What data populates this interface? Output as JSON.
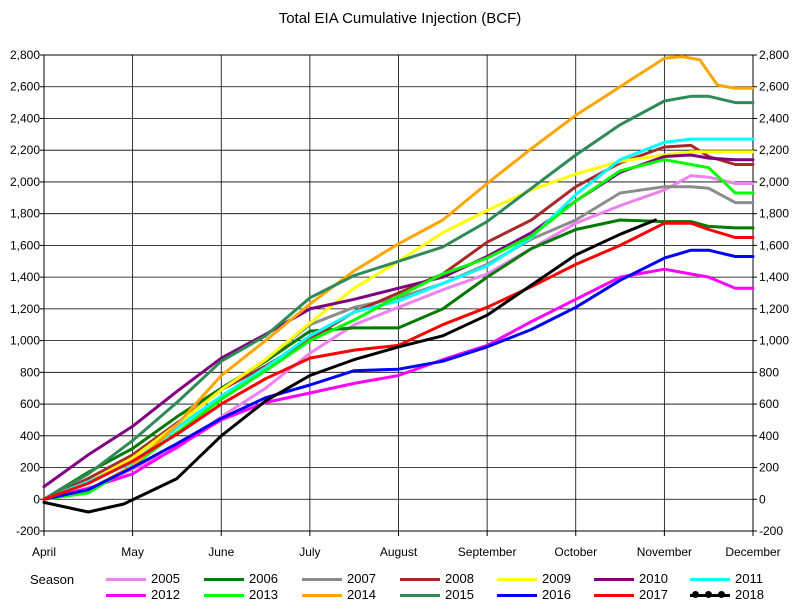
{
  "title": "Total EIA Cumulative Injection (BCF)",
  "legend_title": "Season",
  "chart_data": {
    "type": "line",
    "title": "Total EIA Cumulative Injection (BCF)",
    "xlabel": "",
    "ylabel": "",
    "ylim": [
      -200,
      2800
    ],
    "y_ticks": [
      "-200",
      "0",
      "200",
      "400",
      "600",
      "800",
      "1,000",
      "1,200",
      "1,400",
      "1,600",
      "1,800",
      "2,000",
      "2,200",
      "2,400",
      "2,600",
      "2,800"
    ],
    "x_ticks": [
      "April",
      "May",
      "June",
      "July",
      "August",
      "September",
      "October",
      "November",
      "December"
    ],
    "grid": true,
    "legend_position": "bottom",
    "x_unit": "month index (0 = April, 8 = December)",
    "series": [
      {
        "name": "2005",
        "color": "#ee82ee",
        "x": [
          0,
          0.5,
          1,
          1.5,
          2,
          2.5,
          3,
          3.5,
          4,
          4.5,
          5,
          5.5,
          6,
          6.5,
          7,
          7.3,
          7.5,
          7.8,
          8
        ],
        "y": [
          0,
          60,
          190,
          320,
          520,
          700,
          920,
          1100,
          1210,
          1320,
          1420,
          1580,
          1740,
          1850,
          1950,
          2040,
          2030,
          1990,
          1990
        ]
      },
      {
        "name": "2006",
        "color": "#007a00",
        "x": [
          0,
          0.5,
          1,
          1.5,
          2,
          2.5,
          3,
          3.5,
          4,
          4.5,
          5,
          5.5,
          6,
          6.5,
          7,
          7.3,
          7.5,
          7.8,
          8
        ],
        "y": [
          0,
          170,
          320,
          520,
          700,
          870,
          1060,
          1080,
          1080,
          1200,
          1400,
          1580,
          1700,
          1760,
          1750,
          1750,
          1720,
          1710,
          1710
        ]
      },
      {
        "name": "2007",
        "color": "#8c8c8c",
        "x": [
          0,
          0.5,
          1,
          1.5,
          2,
          2.5,
          3,
          3.5,
          4,
          4.5,
          5,
          5.5,
          6,
          6.5,
          7,
          7.3,
          7.5,
          7.8,
          8
        ],
        "y": [
          0,
          130,
          270,
          470,
          690,
          880,
          1100,
          1210,
          1270,
          1360,
          1480,
          1640,
          1760,
          1930,
          1970,
          1970,
          1960,
          1870,
          1870
        ]
      },
      {
        "name": "2008",
        "color": "#a52a2a",
        "x": [
          0,
          0.5,
          1,
          1.5,
          2,
          2.5,
          3,
          3.5,
          4,
          4.5,
          5,
          5.5,
          6,
          6.5,
          7,
          7.3,
          7.5,
          7.8,
          8
        ],
        "y": [
          0,
          130,
          280,
          480,
          690,
          840,
          1010,
          1180,
          1300,
          1420,
          1620,
          1760,
          1970,
          2120,
          2220,
          2230,
          2160,
          2110,
          2110
        ]
      },
      {
        "name": "2009",
        "color": "#ffff00",
        "x": [
          0,
          0.5,
          1,
          1.5,
          2,
          2.5,
          3,
          3.5,
          4,
          4.5,
          5,
          5.5,
          6,
          6.5,
          7,
          7.3,
          7.5,
          7.8,
          8
        ],
        "y": [
          0,
          110,
          260,
          470,
          690,
          880,
          1110,
          1330,
          1500,
          1680,
          1820,
          1950,
          2050,
          2130,
          2170,
          2190,
          2190,
          2190,
          2190
        ]
      },
      {
        "name": "2010",
        "color": "#800080",
        "x": [
          0,
          0.5,
          1,
          1.5,
          2,
          2.5,
          3,
          3.5,
          4,
          4.5,
          5,
          5.5,
          6,
          6.5,
          7,
          7.3,
          7.5,
          7.8,
          8
        ],
        "y": [
          80,
          280,
          460,
          680,
          890,
          1040,
          1200,
          1260,
          1330,
          1400,
          1530,
          1680,
          1880,
          2060,
          2160,
          2170,
          2150,
          2140,
          2140
        ]
      },
      {
        "name": "2011",
        "color": "#00ffff",
        "x": [
          0,
          0.5,
          1,
          1.5,
          2,
          2.5,
          3,
          3.5,
          4,
          4.5,
          5,
          5.5,
          6,
          6.5,
          7,
          7.3,
          7.5,
          7.8,
          8
        ],
        "y": [
          0,
          110,
          230,
          450,
          650,
          830,
          1030,
          1180,
          1250,
          1360,
          1470,
          1650,
          1920,
          2140,
          2250,
          2270,
          2270,
          2270,
          2270
        ]
      },
      {
        "name": "2012",
        "color": "#ff00ff",
        "x": [
          0,
          0.5,
          1,
          1.5,
          2,
          2.5,
          3,
          3.5,
          4,
          4.5,
          5,
          5.5,
          6,
          6.5,
          7,
          7.3,
          7.5,
          7.8,
          8
        ],
        "y": [
          0,
          70,
          160,
          330,
          500,
          610,
          670,
          730,
          780,
          880,
          970,
          1120,
          1260,
          1400,
          1450,
          1420,
          1400,
          1330,
          1330
        ]
      },
      {
        "name": "2013",
        "color": "#00ff00",
        "x": [
          0,
          0.5,
          1,
          1.5,
          2,
          2.5,
          3,
          3.5,
          4,
          4.5,
          5,
          5.5,
          6,
          6.5,
          7,
          7.3,
          7.5,
          7.8,
          8
        ],
        "y": [
          0,
          40,
          210,
          420,
          630,
          810,
          1000,
          1130,
          1280,
          1420,
          1520,
          1660,
          1880,
          2070,
          2140,
          2110,
          2090,
          1930,
          1930
        ]
      },
      {
        "name": "2014",
        "color": "#ffa500",
        "x": [
          0,
          0.5,
          1,
          1.5,
          2,
          2.5,
          3,
          3.5,
          4,
          4.5,
          5,
          5.5,
          6,
          6.5,
          7,
          7.2,
          7.4,
          7.6,
          7.8,
          8
        ],
        "y": [
          0,
          60,
          210,
          470,
          780,
          1000,
          1230,
          1440,
          1610,
          1760,
          1990,
          2210,
          2420,
          2600,
          2780,
          2790,
          2770,
          2610,
          2590,
          2590
        ]
      },
      {
        "name": "2015",
        "color": "#2e8b57",
        "x": [
          0,
          0.5,
          1,
          1.5,
          2,
          2.5,
          3,
          3.5,
          4,
          4.5,
          5,
          5.5,
          6,
          6.5,
          7,
          7.3,
          7.5,
          7.8,
          8
        ],
        "y": [
          0,
          160,
          370,
          610,
          870,
          1030,
          1270,
          1410,
          1500,
          1590,
          1750,
          1960,
          2170,
          2360,
          2510,
          2540,
          2540,
          2500,
          2500
        ]
      },
      {
        "name": "2016",
        "color": "#0000ff",
        "x": [
          0,
          0.5,
          1,
          1.5,
          2,
          2.5,
          3,
          3.5,
          4,
          4.5,
          5,
          5.5,
          6,
          6.5,
          7,
          7.3,
          7.5,
          7.8,
          8
        ],
        "y": [
          0,
          60,
          200,
          350,
          510,
          640,
          720,
          810,
          820,
          870,
          960,
          1070,
          1210,
          1380,
          1520,
          1570,
          1570,
          1530,
          1530
        ]
      },
      {
        "name": "2017",
        "color": "#ff0000",
        "x": [
          0,
          0.5,
          1,
          1.5,
          2,
          2.5,
          3,
          3.5,
          4,
          4.5,
          5,
          5.5,
          6,
          6.5,
          7,
          7.3,
          7.5,
          7.8,
          8
        ],
        "y": [
          0,
          100,
          240,
          410,
          600,
          760,
          890,
          940,
          970,
          1100,
          1210,
          1340,
          1480,
          1600,
          1740,
          1740,
          1700,
          1650,
          1650
        ]
      },
      {
        "name": "2018",
        "color": "#000000",
        "x": [
          0,
          0.5,
          0.9,
          1.5,
          2,
          2.5,
          3,
          3.5,
          4,
          4.5,
          5,
          5.5,
          6,
          6.5,
          6.9
        ],
        "y": [
          -20,
          -80,
          -30,
          130,
          400,
          620,
          780,
          880,
          960,
          1030,
          1160,
          1350,
          1540,
          1670,
          1760
        ]
      }
    ]
  }
}
